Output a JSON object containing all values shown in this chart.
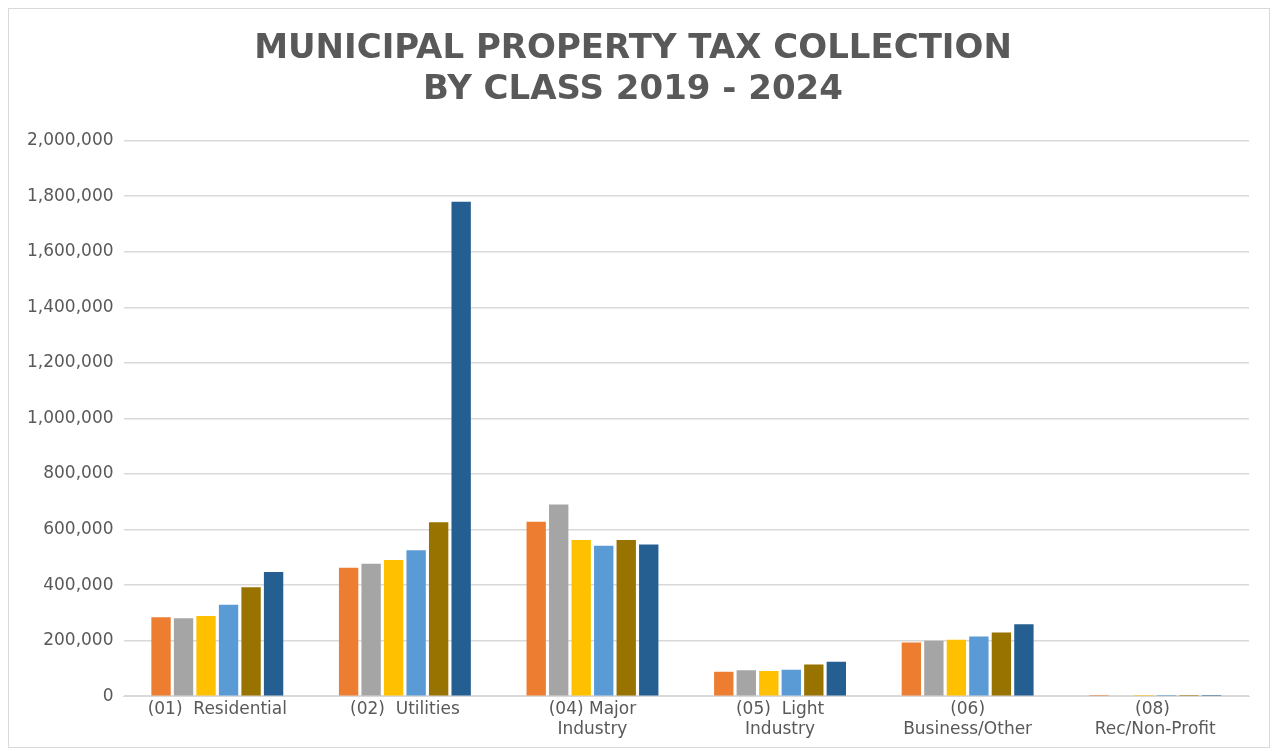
{
  "chart_data": {
    "type": "bar",
    "title": "MUNICIPAL PROPERTY TAX COLLECTION BY CLASS 2019 - 2024",
    "categories": [
      "(01)  Residential",
      "(02)  Utilities",
      "(04) Major Industry",
      "(05)  Light Industry",
      "(06) Business/Other",
      "(08)  Rec/Non-Profit"
    ],
    "series": [
      {
        "color": "#ed7d31",
        "values": [
          284000,
          462000,
          628000,
          88000,
          193000,
          1000
        ]
      },
      {
        "color": "#a5a5a5",
        "values": [
          281000,
          477000,
          690000,
          93000,
          200000,
          null
        ]
      },
      {
        "color": "#ffc000",
        "values": [
          289000,
          490000,
          562000,
          91000,
          203000,
          1000
        ]
      },
      {
        "color": "#5b9bd5",
        "values": [
          329000,
          525000,
          542000,
          95000,
          215000,
          1000
        ]
      },
      {
        "color": "#997300",
        "values": [
          392000,
          626000,
          562000,
          114000,
          229000,
          1000
        ]
      },
      {
        "color": "#255e91",
        "values": [
          447000,
          1780000,
          546000,
          124000,
          259000,
          1000
        ]
      }
    ],
    "ylim": [
      0,
      2000000
    ],
    "yticks": [
      0,
      {
        "value": 200000,
        "label": "200,000"
      },
      {
        "value": 400000,
        "label": "400,000"
      },
      {
        "value": 600000,
        "label": "600,000"
      },
      {
        "value": 800000,
        "label": "800,000"
      },
      {
        "value": 1000000,
        "label": "1,000,000"
      },
      {
        "value": 1200000,
        "label": "1,200,000"
      },
      {
        "value": 1400000,
        "label": "1,400,000"
      },
      {
        "value": 1600000,
        "label": "1,600,000"
      },
      {
        "value": 1800000,
        "label": "1,800,000"
      },
      {
        "value": 2000000,
        "label": "2,000,000"
      }
    ],
    "grid": "y",
    "legend": false
  }
}
